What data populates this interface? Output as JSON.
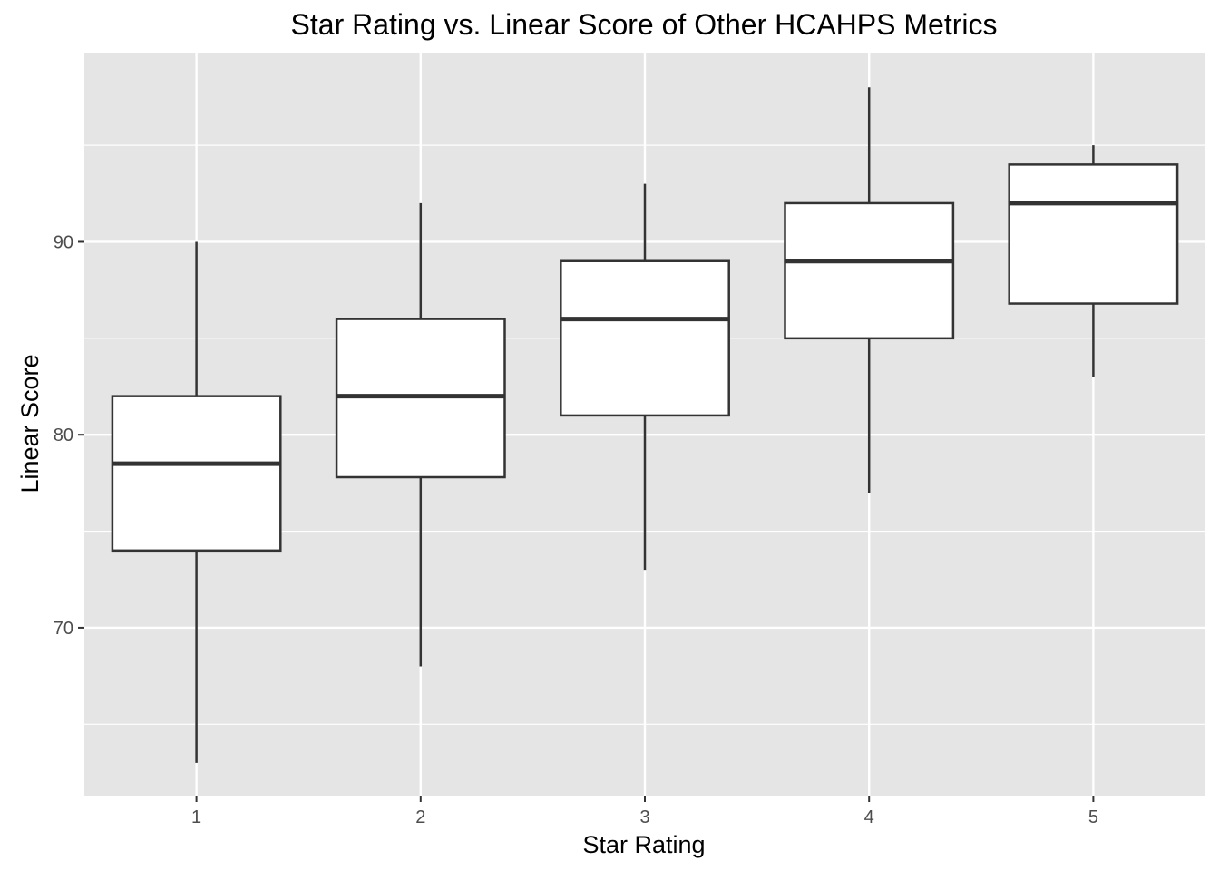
{
  "chart_data": {
    "type": "boxplot",
    "title": "Star Rating vs. Linear Score of Other HCAHPS Metrics",
    "xlabel": "Star Rating",
    "ylabel": "Linear Score",
    "categories": [
      "1",
      "2",
      "3",
      "4",
      "5"
    ],
    "ylim": [
      61.3,
      99.8
    ],
    "yticks": [
      70,
      80,
      90
    ],
    "grid": true,
    "legend": "none",
    "boxes": [
      {
        "category": "1",
        "min": 63,
        "q1": 74,
        "median": 78.5,
        "q3": 82,
        "max": 90
      },
      {
        "category": "2",
        "min": 68,
        "q1": 77.8,
        "median": 82,
        "q3": 86,
        "max": 92
      },
      {
        "category": "3",
        "min": 73,
        "q1": 81,
        "median": 86,
        "q3": 89,
        "max": 93
      },
      {
        "category": "4",
        "min": 77,
        "q1": 85,
        "median": 89,
        "q3": 92,
        "max": 98
      },
      {
        "category": "5",
        "min": 83,
        "q1": 86.8,
        "median": 92,
        "q3": 94,
        "max": 95
      }
    ],
    "colors": {
      "panel": "#e5e5e5",
      "grid": "#ffffff",
      "box_fill": "#ffffff",
      "box_stroke": "#333333"
    }
  }
}
